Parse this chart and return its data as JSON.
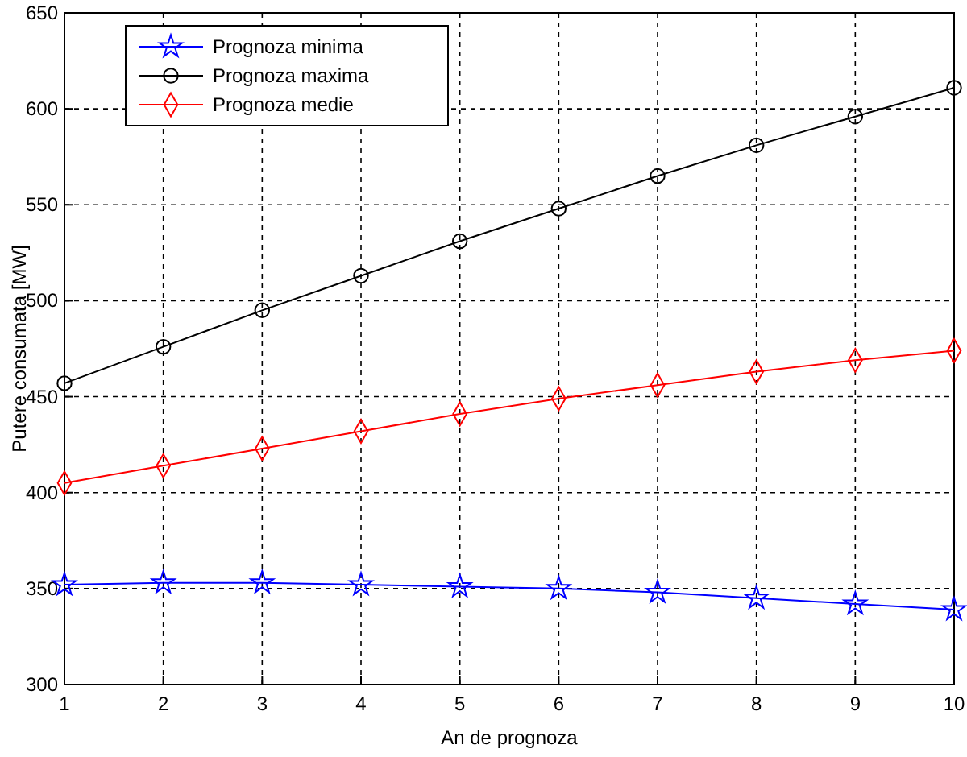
{
  "chart_data": {
    "type": "line",
    "xlabel": "An de prognoza",
    "ylabel": "Putere consumata [MW]",
    "x": [
      1,
      2,
      3,
      4,
      5,
      6,
      7,
      8,
      9,
      10
    ],
    "xlim": [
      1,
      10
    ],
    "xticks": [
      1,
      2,
      3,
      4,
      5,
      6,
      7,
      8,
      9,
      10
    ],
    "ylim": [
      300,
      650
    ],
    "yticks": [
      300,
      350,
      400,
      450,
      500,
      550,
      600,
      650
    ],
    "grid": true,
    "legend": "top left",
    "line_style": "solid",
    "series": [
      {
        "name": "Prognoza minima",
        "color": "#0000ff",
        "marker": "star",
        "values": [
          352,
          353,
          353,
          352,
          351,
          350,
          348,
          345,
          342,
          339
        ]
      },
      {
        "name": "Prognoza maxima",
        "color": "#000000",
        "marker": "circle",
        "values": [
          457,
          476,
          495,
          513,
          531,
          548,
          565,
          581,
          596,
          611
        ]
      },
      {
        "name": "Prognoza medie",
        "color": "#ff0000",
        "marker": "diamond",
        "values": [
          405,
          414,
          423,
          432,
          441,
          449,
          456,
          463,
          469,
          474
        ]
      }
    ]
  }
}
